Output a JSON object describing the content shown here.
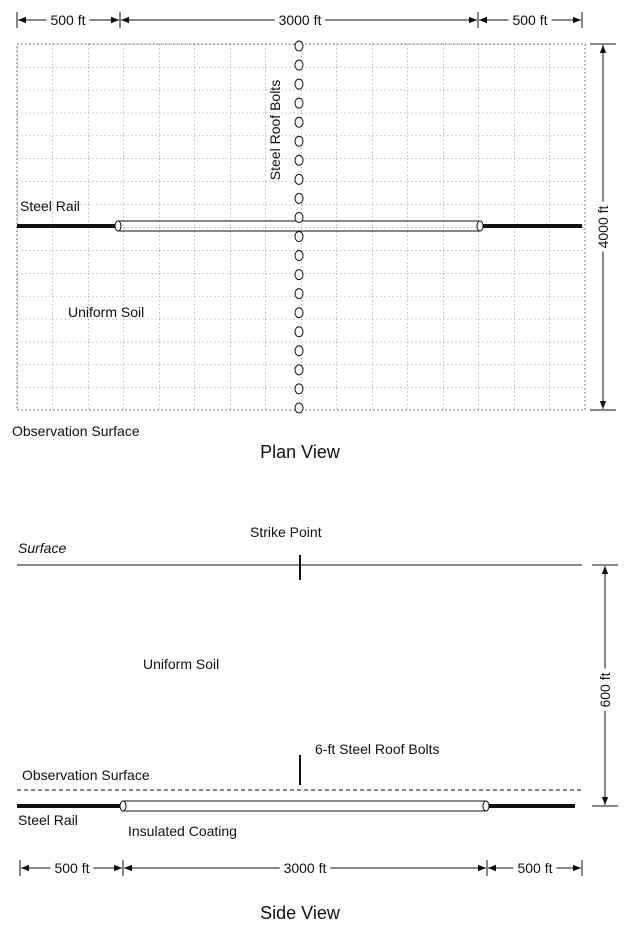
{
  "plan_view": {
    "dimensions": {
      "left": "500 ft",
      "middle": "3000 ft",
      "right": "500 ft",
      "height": "4000 ft"
    },
    "labels": {
      "bolts": "Steel Roof Bolts",
      "rail": "Steel Rail",
      "soil": "Uniform Soil",
      "observation": "Observation Surface"
    },
    "caption": "Plan View"
  },
  "side_view": {
    "dimensions": {
      "left": "500 ft",
      "middle": "3000 ft",
      "right": "500 ft",
      "depth": "600 ft"
    },
    "labels": {
      "surface": "Surface",
      "strike": "Strike Point",
      "soil": "Uniform Soil",
      "bolts": "6-ft Steel Roof Bolts",
      "observation": "Observation Surface",
      "rail": "Steel Rail",
      "coating": "Insulated Coating"
    },
    "caption": "Side View"
  }
}
